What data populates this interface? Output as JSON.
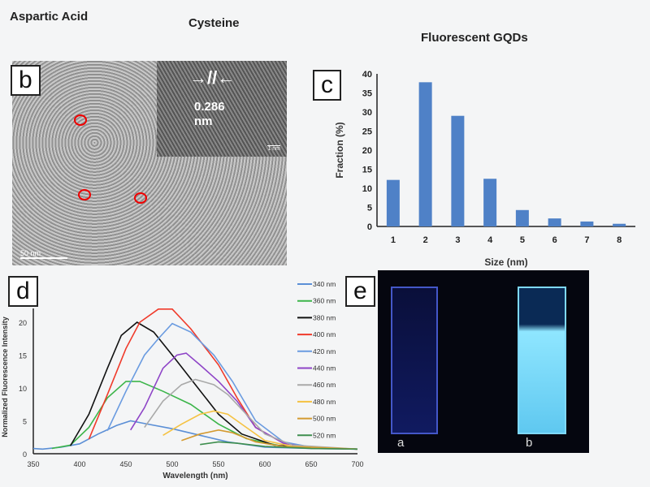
{
  "header": {
    "left": "Aspartic Acid",
    "middle": "Cysteine",
    "right": "Fluorescent GQDs"
  },
  "panels": {
    "b": "b",
    "c": "c",
    "d": "d",
    "e": "e"
  },
  "tem": {
    "lattice": "0.286",
    "lattice_unit": "nm",
    "inset_scale": "1 nm",
    "scale": "50 nm"
  },
  "photo": {
    "left": "a",
    "right": "b"
  },
  "chart_data": [
    {
      "type": "bar",
      "panel": "c",
      "categories": [
        "1",
        "2",
        "3",
        "4",
        "5",
        "6",
        "7",
        "8"
      ],
      "values": [
        12.2,
        37.8,
        29,
        12.5,
        4.3,
        2.1,
        1.3,
        0.7
      ],
      "xlabel": "Size (nm)",
      "ylabel": "Fraction (%)",
      "ylim": [
        0,
        40
      ],
      "yticks": [
        0,
        5,
        10,
        15,
        20,
        25,
        30,
        35,
        40
      ],
      "color": "#4f81c7",
      "grid": false
    },
    {
      "type": "line",
      "panel": "d",
      "xlabel": "Wavelength (nm)",
      "ylabel": "Normalized Fluorescence Intensity",
      "xlim": [
        350,
        700
      ],
      "ylim": [
        0,
        20
      ],
      "xticks": [
        350,
        400,
        450,
        500,
        550,
        600,
        650,
        700
      ],
      "yticks": [
        0,
        5,
        10,
        15,
        20
      ],
      "legend": "right",
      "grid": false,
      "series": [
        {
          "name": "340 nm",
          "color": "#5b8fd6",
          "x": [
            350,
            360,
            380,
            400,
            420,
            440,
            455,
            470,
            500,
            530,
            560,
            600,
            650,
            700
          ],
          "y": [
            0.8,
            0.7,
            1,
            1.5,
            3,
            4.3,
            5,
            4.6,
            3.8,
            2.8,
            1.8,
            1,
            0.8,
            0.7
          ]
        },
        {
          "name": "360 nm",
          "color": "#3cb54a",
          "x": [
            370,
            390,
            410,
            430,
            450,
            465,
            490,
            520,
            550,
            580,
            620,
            700
          ],
          "y": [
            0.8,
            1.3,
            4,
            8.5,
            11,
            11,
            9.5,
            7.5,
            4.5,
            2.3,
            1.1,
            0.7
          ]
        },
        {
          "name": "380 nm",
          "color": "#111111",
          "x": [
            390,
            410,
            430,
            445,
            462,
            480,
            500,
            525,
            550,
            575,
            610,
            650,
            700
          ],
          "y": [
            1.2,
            6,
            13,
            18,
            20,
            18.5,
            15,
            10.5,
            6,
            3,
            1.3,
            0.9,
            0.7
          ]
        },
        {
          "name": "400 nm",
          "color": "#f03a2a",
          "x": [
            410,
            430,
            450,
            465,
            485,
            500,
            520,
            550,
            570,
            590,
            620,
            650,
            700
          ],
          "y": [
            2.2,
            9,
            16,
            20,
            22,
            22,
            19,
            13.5,
            8.5,
            4,
            1.6,
            0.9,
            0.7
          ]
        },
        {
          "name": "420 nm",
          "color": "#6a9be0",
          "x": [
            430,
            450,
            470,
            485,
            500,
            520,
            545,
            565,
            590,
            620,
            650,
            700
          ],
          "y": [
            3.5,
            9.5,
            15,
            17.5,
            19.8,
            18.5,
            15,
            11,
            5,
            1.8,
            1,
            0.7
          ]
        },
        {
          "name": "440 nm",
          "color": "#8e44c7",
          "x": [
            455,
            470,
            490,
            505,
            515,
            530,
            550,
            570,
            590,
            620,
            650,
            700
          ],
          "y": [
            3.6,
            7,
            13,
            15,
            15.3,
            13.5,
            11,
            8,
            4,
            1.6,
            0.9,
            0.7
          ]
        },
        {
          "name": "460 nm",
          "color": "#a9a9a9",
          "x": [
            470,
            490,
            510,
            525,
            545,
            560,
            580,
            600,
            630,
            700
          ],
          "y": [
            4,
            8,
            10.5,
            11.3,
            10.5,
            9,
            6,
            3,
            1.3,
            0.7
          ]
        },
        {
          "name": "480 nm",
          "color": "#f5c242",
          "x": [
            490,
            510,
            530,
            545,
            560,
            580,
            600,
            630,
            700
          ],
          "y": [
            2.8,
            4.5,
            6,
            6.5,
            6,
            4,
            2,
            1.1,
            0.7
          ]
        },
        {
          "name": "500 nm",
          "color": "#d49a30",
          "x": [
            510,
            530,
            550,
            565,
            590,
            620,
            700
          ],
          "y": [
            2,
            3,
            3.6,
            3.2,
            1.8,
            1.1,
            0.7
          ]
        },
        {
          "name": "520 nm",
          "color": "#3e8e4e",
          "x": [
            530,
            550,
            570,
            600,
            650,
            700
          ],
          "y": [
            1.4,
            1.8,
            1.6,
            1.1,
            0.8,
            0.7
          ]
        }
      ]
    }
  ]
}
